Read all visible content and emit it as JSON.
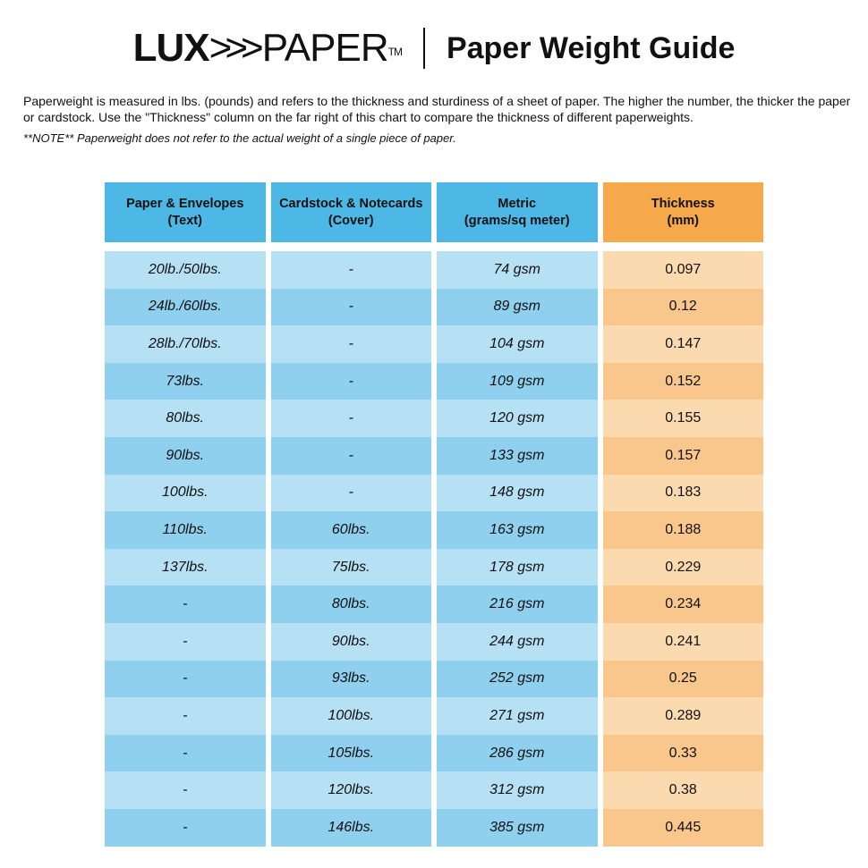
{
  "header": {
    "logo_text": "LUXPAPER™",
    "title": "Paper Weight Guide"
  },
  "intro": "Paperweight is measured in lbs. (pounds) and refers to the thickness and sturdiness of a sheet of paper. The higher the number, the thicker the paper or cardstock. Use the \"Thickness\" column on the far right of this chart to compare the thickness of different paperweights.",
  "note": "**NOTE** Paperweight does not refer to the actual weight of a single piece of paper.",
  "colors": {
    "header_blue": "#4db8e5",
    "header_orange": "#f6a94a",
    "row_blue_light": "#b6e1f4",
    "row_blue_dark": "#8fd0ef",
    "row_orange_light": "#fcdaaf",
    "row_orange_dark": "#f9c68c"
  },
  "table": {
    "columns": [
      "Paper & Envelopes\n(Text)",
      "Cardstock & Notecards\n(Cover)",
      "Metric\n(grams/sq meter)",
      "Thickness\n(mm)"
    ],
    "rows": [
      [
        "20lb./50lbs.",
        "-",
        "74 gsm",
        "0.097"
      ],
      [
        "24lb./60lbs.",
        "-",
        "89 gsm",
        "0.12"
      ],
      [
        "28lb./70lbs.",
        "-",
        "104 gsm",
        "0.147"
      ],
      [
        "73lbs.",
        "-",
        "109 gsm",
        "0.152"
      ],
      [
        "80lbs.",
        "-",
        "120 gsm",
        "0.155"
      ],
      [
        "90lbs.",
        "-",
        "133 gsm",
        "0.157"
      ],
      [
        "100lbs.",
        "-",
        "148 gsm",
        "0.183"
      ],
      [
        "110lbs.",
        "60lbs.",
        "163 gsm",
        "0.188"
      ],
      [
        "137lbs.",
        "75lbs.",
        "178 gsm",
        "0.229"
      ],
      [
        "-",
        "80lbs.",
        "216 gsm",
        "0.234"
      ],
      [
        "-",
        "90lbs.",
        "244 gsm",
        "0.241"
      ],
      [
        "-",
        "93lbs.",
        "252 gsm",
        "0.25"
      ],
      [
        "-",
        "100lbs.",
        "271 gsm",
        "0.289"
      ],
      [
        "-",
        "105lbs.",
        "286 gsm",
        "0.33"
      ],
      [
        "-",
        "120lbs.",
        "312 gsm",
        "0.38"
      ],
      [
        "-",
        "146lbs.",
        "385 gsm",
        "0.445"
      ]
    ]
  }
}
